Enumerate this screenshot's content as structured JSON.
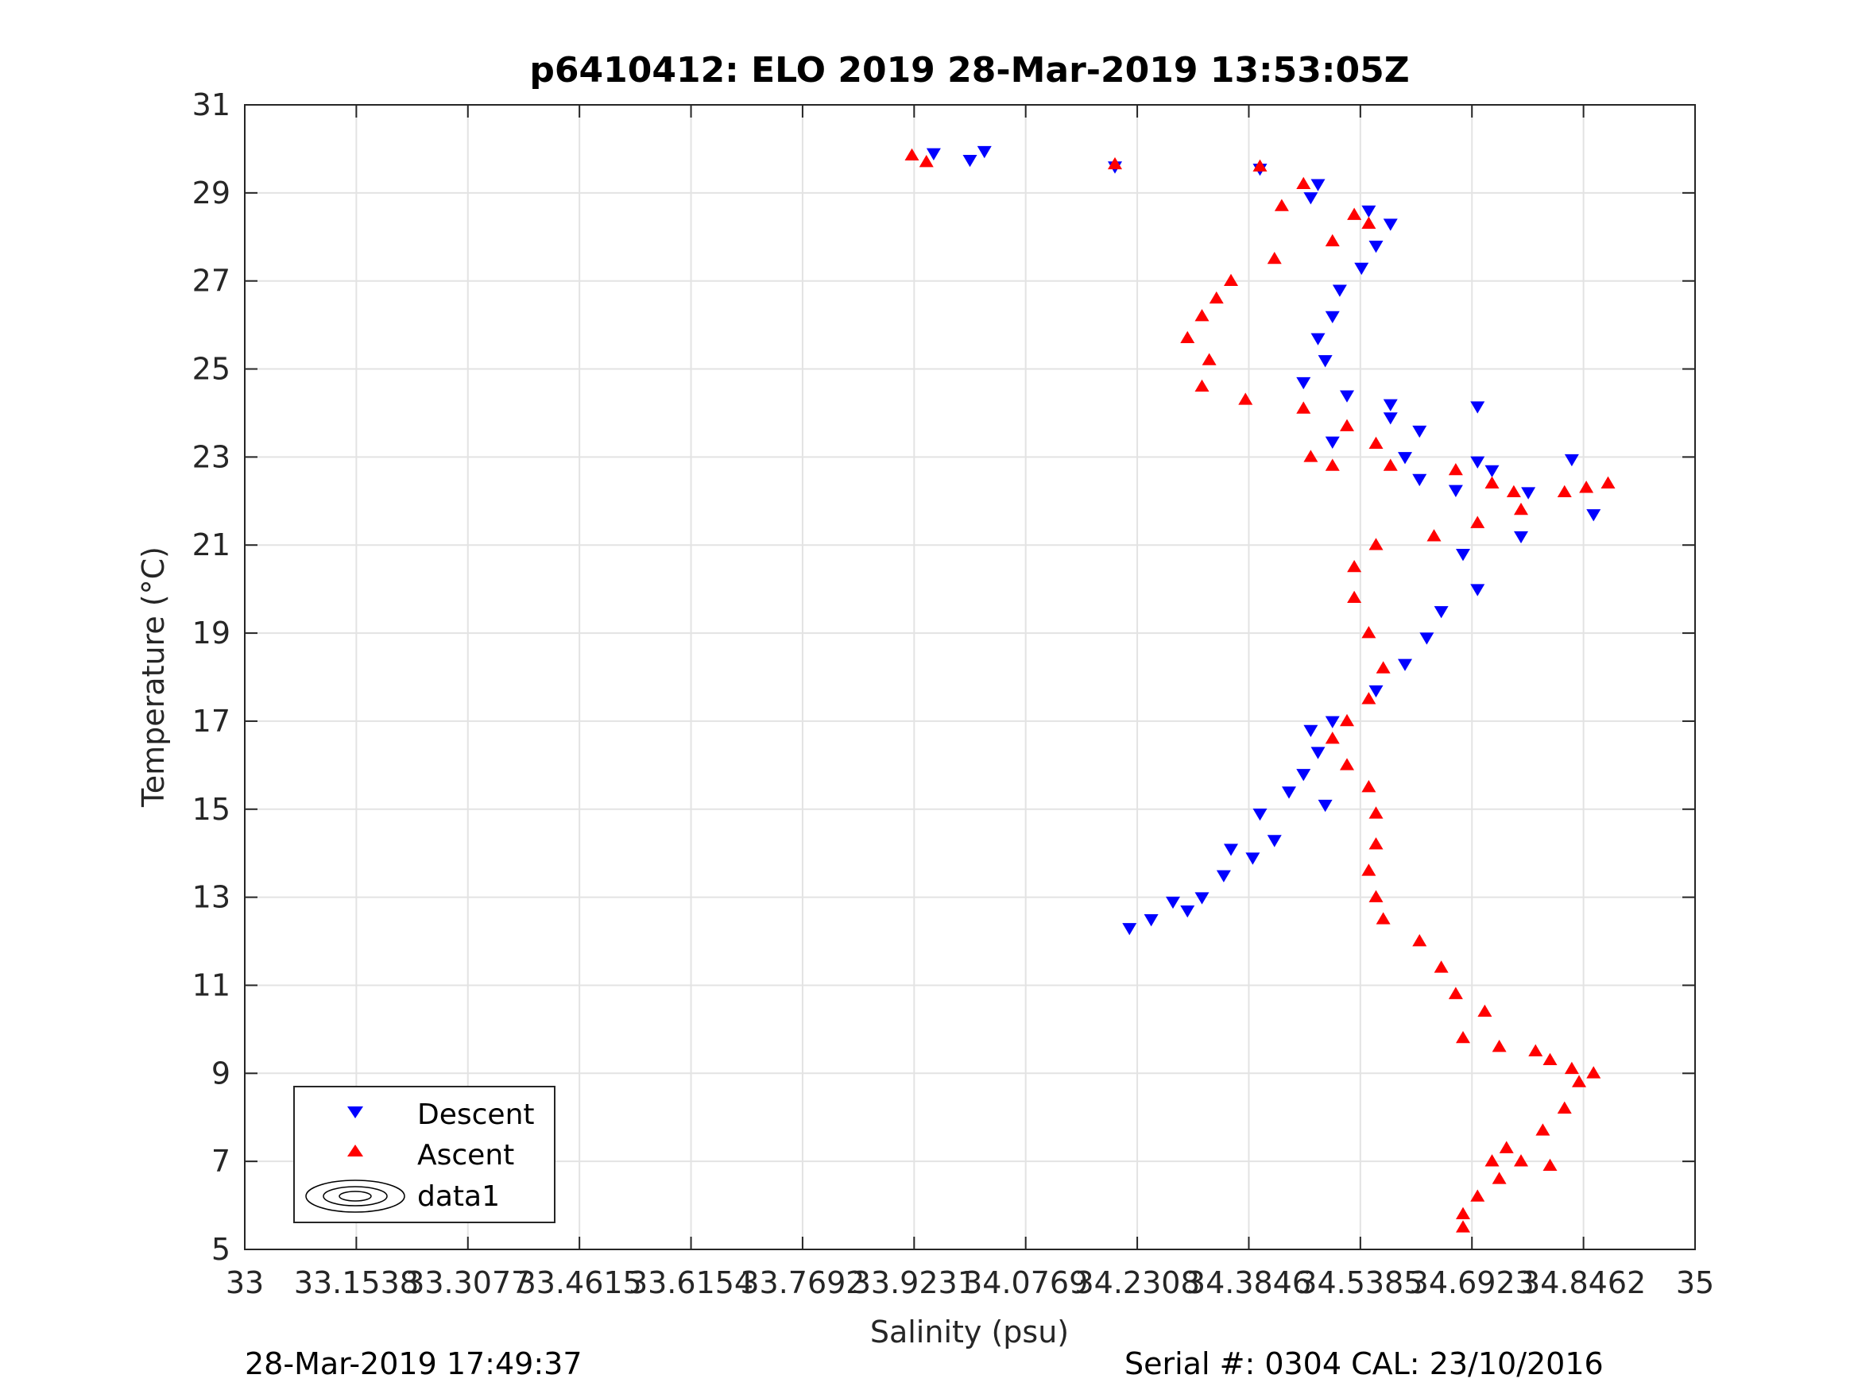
{
  "chart_data": {
    "type": "scatter",
    "title": "p6410412: ELO 2019 28-Mar-2019 13:53:05Z",
    "xlabel": "Salinity (psu)",
    "ylabel": "Temperature (°C)",
    "xlim": [
      33,
      35
    ],
    "ylim": [
      5,
      31
    ],
    "x_ticks": [
      "33",
      "33.1538",
      "33.3077",
      "33.4615",
      "33.6154",
      "33.7692",
      "33.9231",
      "34.0769",
      "34.2308",
      "34.3846",
      "34.5385",
      "34.6923",
      "34.8462",
      "35"
    ],
    "y_ticks": [
      "5",
      "7",
      "9",
      "11",
      "13",
      "15",
      "17",
      "19",
      "21",
      "23",
      "25",
      "27",
      "29",
      "31"
    ],
    "grid": true,
    "legend_position": "bottom-left",
    "legend": [
      {
        "label": "Descent",
        "marker": "triangle-down",
        "color": "#0000ff"
      },
      {
        "label": "Ascent",
        "marker": "triangle-up",
        "color": "#ff0000"
      },
      {
        "label": "data1",
        "marker": "contour",
        "color": "#000000"
      }
    ],
    "contour_levels": [
      "20.5",
      "21",
      "21.5",
      "22",
      "22.5",
      "23",
      "23.5",
      "24",
      "24.5",
      "25",
      "25.5",
      "26",
      "26.5",
      "27"
    ],
    "series": [
      {
        "name": "Descent",
        "color": "#0000ff",
        "marker": "triangle-down",
        "points": [
          [
            33.95,
            29.9
          ],
          [
            34.02,
            29.95
          ],
          [
            34.0,
            29.75
          ],
          [
            34.2,
            29.6
          ],
          [
            34.4,
            29.55
          ],
          [
            34.48,
            29.2
          ],
          [
            34.47,
            28.9
          ],
          [
            34.55,
            28.6
          ],
          [
            34.58,
            28.3
          ],
          [
            34.56,
            27.8
          ],
          [
            34.54,
            27.3
          ],
          [
            34.51,
            26.8
          ],
          [
            34.5,
            26.2
          ],
          [
            34.48,
            25.7
          ],
          [
            34.49,
            25.2
          ],
          [
            34.46,
            24.7
          ],
          [
            34.52,
            24.4
          ],
          [
            34.58,
            24.2
          ],
          [
            34.7,
            24.15
          ],
          [
            34.58,
            23.9
          ],
          [
            34.62,
            23.6
          ],
          [
            34.5,
            23.35
          ],
          [
            34.6,
            23.0
          ],
          [
            34.7,
            22.9
          ],
          [
            34.83,
            22.95
          ],
          [
            34.72,
            22.7
          ],
          [
            34.62,
            22.5
          ],
          [
            34.67,
            22.25
          ],
          [
            34.77,
            22.2
          ],
          [
            34.86,
            21.7
          ],
          [
            34.76,
            21.2
          ],
          [
            34.68,
            20.8
          ],
          [
            34.7,
            20.0
          ],
          [
            34.65,
            19.5
          ],
          [
            34.63,
            18.9
          ],
          [
            34.6,
            18.3
          ],
          [
            34.56,
            17.7
          ],
          [
            34.5,
            17.0
          ],
          [
            34.48,
            16.3
          ],
          [
            34.46,
            15.8
          ],
          [
            34.44,
            15.4
          ],
          [
            34.4,
            14.9
          ],
          [
            34.42,
            14.3
          ],
          [
            34.39,
            13.9
          ],
          [
            34.35,
            13.5
          ],
          [
            34.32,
            13.0
          ],
          [
            34.3,
            12.7
          ],
          [
            34.25,
            12.5
          ],
          [
            34.22,
            12.3
          ],
          [
            34.28,
            12.9
          ],
          [
            34.36,
            14.1
          ],
          [
            34.47,
            16.8
          ],
          [
            34.49,
            15.1
          ]
        ]
      },
      {
        "name": "Ascent",
        "color": "#ff0000",
        "marker": "triangle-up",
        "points": [
          [
            33.92,
            29.85
          ],
          [
            33.94,
            29.7
          ],
          [
            34.2,
            29.65
          ],
          [
            34.4,
            29.6
          ],
          [
            34.46,
            29.2
          ],
          [
            34.43,
            28.7
          ],
          [
            34.53,
            28.5
          ],
          [
            34.55,
            28.3
          ],
          [
            34.5,
            27.9
          ],
          [
            34.42,
            27.5
          ],
          [
            34.36,
            27.0
          ],
          [
            34.34,
            26.6
          ],
          [
            34.32,
            26.2
          ],
          [
            34.3,
            25.7
          ],
          [
            34.33,
            25.2
          ],
          [
            34.32,
            24.6
          ],
          [
            34.38,
            24.3
          ],
          [
            34.46,
            24.1
          ],
          [
            34.52,
            23.7
          ],
          [
            34.56,
            23.3
          ],
          [
            34.47,
            23.0
          ],
          [
            34.5,
            22.8
          ],
          [
            34.58,
            22.8
          ],
          [
            34.67,
            22.7
          ],
          [
            34.72,
            22.4
          ],
          [
            34.75,
            22.2
          ],
          [
            34.85,
            22.3
          ],
          [
            34.88,
            22.4
          ],
          [
            34.82,
            22.2
          ],
          [
            34.76,
            21.8
          ],
          [
            34.7,
            21.5
          ],
          [
            34.64,
            21.2
          ],
          [
            34.56,
            21.0
          ],
          [
            34.53,
            20.5
          ],
          [
            34.53,
            19.8
          ],
          [
            34.55,
            19.0
          ],
          [
            34.57,
            18.2
          ],
          [
            34.55,
            17.5
          ],
          [
            34.52,
            17.0
          ],
          [
            34.5,
            16.6
          ],
          [
            34.52,
            16.0
          ],
          [
            34.55,
            15.5
          ],
          [
            34.56,
            14.9
          ],
          [
            34.56,
            14.2
          ],
          [
            34.55,
            13.6
          ],
          [
            34.56,
            13.0
          ],
          [
            34.57,
            12.5
          ],
          [
            34.62,
            12.0
          ],
          [
            34.65,
            11.4
          ],
          [
            34.67,
            10.8
          ],
          [
            34.71,
            10.4
          ],
          [
            34.68,
            9.8
          ],
          [
            34.73,
            9.6
          ],
          [
            34.78,
            9.5
          ],
          [
            34.8,
            9.3
          ],
          [
            34.83,
            9.1
          ],
          [
            34.86,
            9.0
          ],
          [
            34.84,
            8.8
          ],
          [
            34.82,
            8.2
          ],
          [
            34.79,
            7.7
          ],
          [
            34.74,
            7.3
          ],
          [
            34.72,
            7.0
          ],
          [
            34.76,
            7.0
          ],
          [
            34.8,
            6.9
          ],
          [
            34.73,
            6.6
          ],
          [
            34.7,
            6.2
          ],
          [
            34.68,
            5.8
          ],
          [
            34.68,
            5.5
          ]
        ]
      }
    ]
  },
  "footer": {
    "left": "28-Mar-2019 17:49:37",
    "right": "Serial #: 0304  CAL: 23/10/2016"
  }
}
